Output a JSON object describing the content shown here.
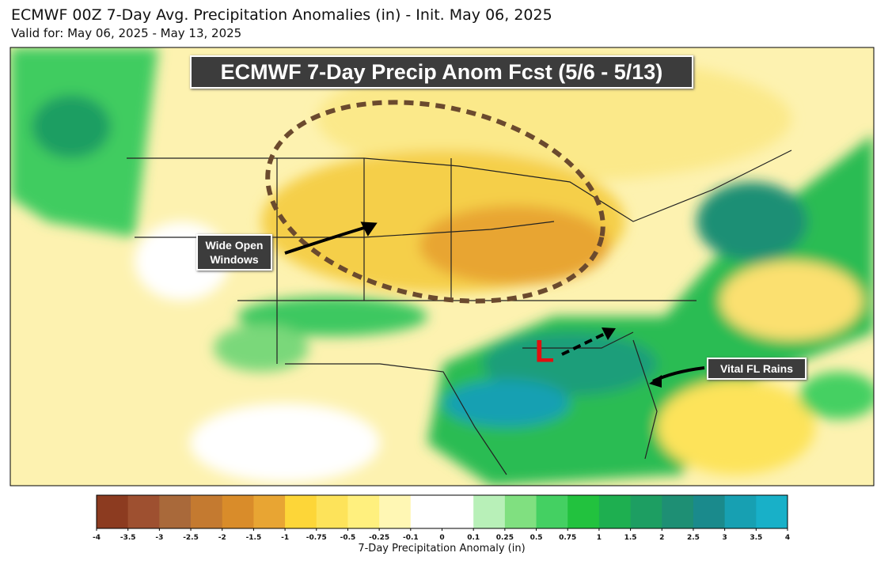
{
  "header": {
    "title": "ECMWF 00Z 7-Day Avg. Precipitation Anomalies (in) - Init. May 06, 2025",
    "subtitle": "Valid for: May 06, 2025 - May 13, 2025"
  },
  "map": {
    "banner": "ECMWF 7-Day Precip Anom Fcst (5/6 - 5/13)",
    "annotations": [
      "Wide Open Windows",
      "Vital FL Rains"
    ],
    "low_marker": "L"
  },
  "colorbar": {
    "label": "7-Day Precipitation Anomaly (in)",
    "ticks": [
      -4,
      -3.5,
      -3,
      -2.5,
      -2,
      -1.5,
      -1,
      -0.75,
      -0.5,
      -0.25,
      -0.1,
      0,
      0.1,
      0.25,
      0.5,
      0.75,
      1,
      1.5,
      2,
      2.5,
      3,
      3.5,
      4
    ],
    "colors": [
      "#8c3b20",
      "#9e5030",
      "#a9693a",
      "#c47a30",
      "#d98c2a",
      "#e8a533",
      "#fdd638",
      "#fde35a",
      "#fff07e",
      "#fff7b4",
      "#ffffff",
      "#ffffff",
      "#b8f0b8",
      "#80e080",
      "#44d062",
      "#22c23e",
      "#1eaf50",
      "#1d9e62",
      "#1e8f74",
      "#1a8a8c",
      "#17a0b2",
      "#18b0c8"
    ]
  }
}
